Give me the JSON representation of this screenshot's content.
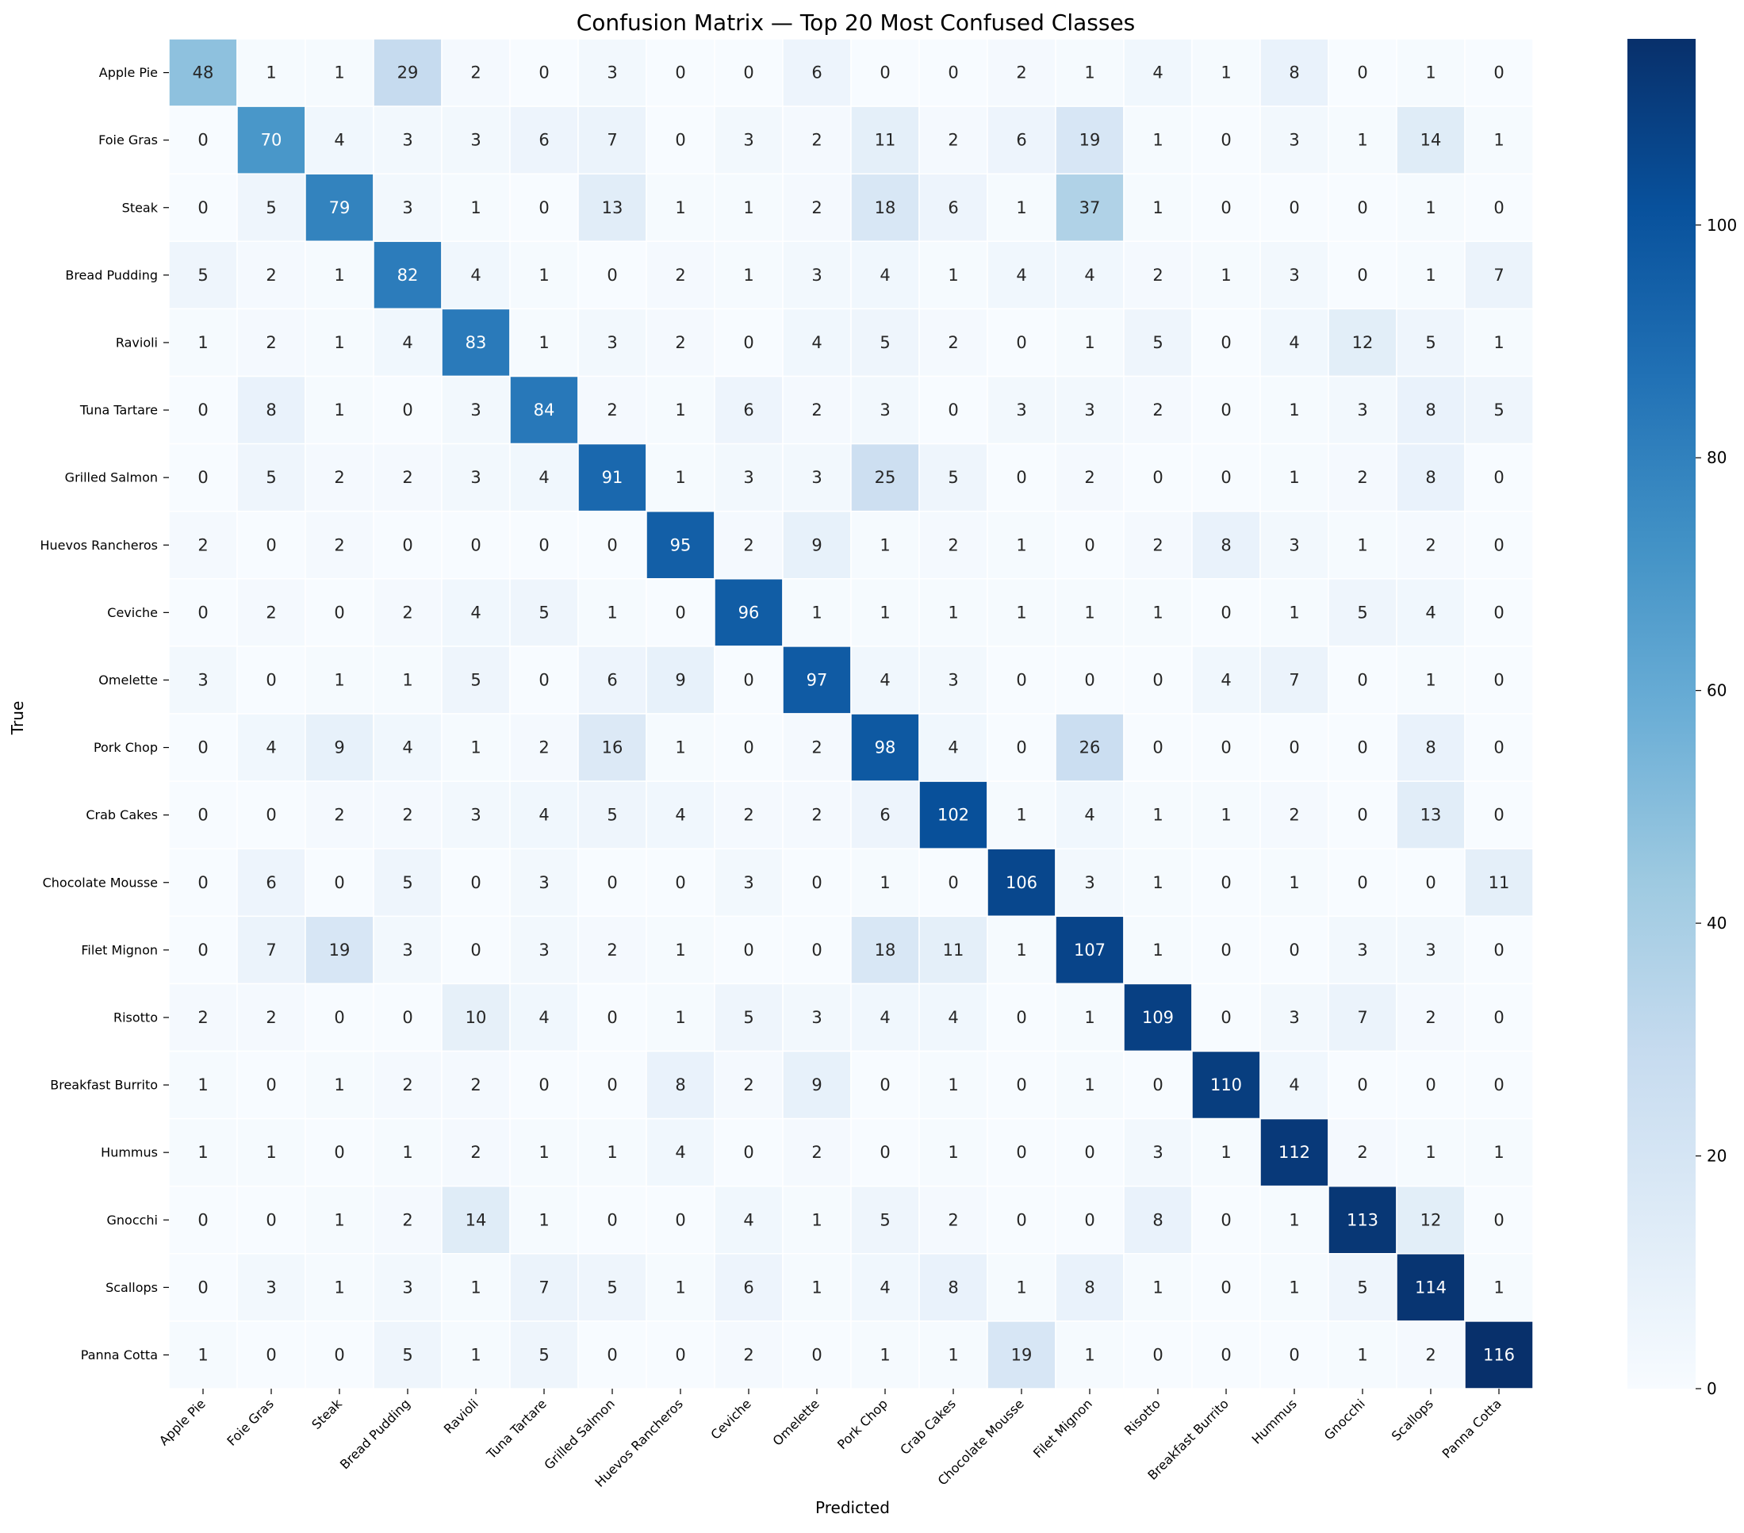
{
  "chart_data": {
    "type": "heatmap",
    "title": "Confusion Matrix — Top 20 Most Confused Classes",
    "xlabel": "Predicted",
    "ylabel": "True",
    "colormap": "Blues",
    "colors": {
      "low": "#f7fbff",
      "high": "#08306b",
      "text_light": "#ffffff",
      "text_dark": "#262626",
      "gridline": "#ffffff"
    },
    "vmin": 0,
    "vmax": 116,
    "colorbar_ticks": [
      "0",
      "20",
      "40",
      "60",
      "80",
      "100"
    ],
    "classes": [
      "Apple Pie",
      "Foie Gras",
      "Steak",
      "Bread Pudding",
      "Ravioli",
      "Tuna Tartare",
      "Grilled Salmon",
      "Huevos Rancheros",
      "Ceviche",
      "Omelette",
      "Pork Chop",
      "Crab Cakes",
      "Chocolate Mousse",
      "Filet Mignon",
      "Risotto",
      "Breakfast Burrito",
      "Hummus",
      "Gnocchi",
      "Scallops",
      "Panna Cotta"
    ],
    "matrix": [
      [
        48,
        1,
        1,
        29,
        2,
        0,
        3,
        0,
        0,
        6,
        0,
        0,
        2,
        1,
        4,
        1,
        8,
        0,
        1,
        0
      ],
      [
        0,
        70,
        4,
        3,
        3,
        6,
        7,
        0,
        3,
        2,
        11,
        2,
        6,
        19,
        1,
        0,
        3,
        1,
        14,
        1
      ],
      [
        0,
        5,
        79,
        3,
        1,
        0,
        13,
        1,
        1,
        2,
        18,
        6,
        1,
        37,
        1,
        0,
        0,
        0,
        1,
        0
      ],
      [
        5,
        2,
        1,
        82,
        4,
        1,
        0,
        2,
        1,
        3,
        4,
        1,
        4,
        4,
        2,
        1,
        3,
        0,
        1,
        7
      ],
      [
        1,
        2,
        1,
        4,
        83,
        1,
        3,
        2,
        0,
        4,
        5,
        2,
        0,
        1,
        5,
        0,
        4,
        12,
        5,
        1
      ],
      [
        0,
        8,
        1,
        0,
        3,
        84,
        2,
        1,
        6,
        2,
        3,
        0,
        3,
        3,
        2,
        0,
        1,
        3,
        8,
        5
      ],
      [
        0,
        5,
        2,
        2,
        3,
        4,
        91,
        1,
        3,
        3,
        25,
        5,
        0,
        2,
        0,
        0,
        1,
        2,
        8,
        0
      ],
      [
        2,
        0,
        2,
        0,
        0,
        0,
        0,
        95,
        2,
        9,
        1,
        2,
        1,
        0,
        2,
        8,
        3,
        1,
        2,
        0
      ],
      [
        0,
        2,
        0,
        2,
        4,
        5,
        1,
        0,
        96,
        1,
        1,
        1,
        1,
        1,
        1,
        0,
        1,
        5,
        4,
        0
      ],
      [
        3,
        0,
        1,
        1,
        5,
        0,
        6,
        9,
        0,
        97,
        4,
        3,
        0,
        0,
        0,
        4,
        7,
        0,
        1,
        0
      ],
      [
        0,
        4,
        9,
        4,
        1,
        2,
        16,
        1,
        0,
        2,
        98,
        4,
        0,
        26,
        0,
        0,
        0,
        0,
        8,
        0
      ],
      [
        0,
        0,
        2,
        2,
        3,
        4,
        5,
        4,
        2,
        2,
        6,
        102,
        1,
        4,
        1,
        1,
        2,
        0,
        13,
        0
      ],
      [
        0,
        6,
        0,
        5,
        0,
        3,
        0,
        0,
        3,
        0,
        1,
        0,
        106,
        3,
        1,
        0,
        1,
        0,
        0,
        11
      ],
      [
        0,
        7,
        19,
        3,
        0,
        3,
        2,
        1,
        0,
        0,
        18,
        11,
        1,
        107,
        1,
        0,
        0,
        3,
        3,
        0
      ],
      [
        2,
        2,
        0,
        0,
        10,
        4,
        0,
        1,
        5,
        3,
        4,
        4,
        0,
        1,
        109,
        0,
        3,
        7,
        2,
        0
      ],
      [
        1,
        0,
        1,
        2,
        2,
        0,
        0,
        8,
        2,
        9,
        0,
        1,
        0,
        1,
        0,
        110,
        4,
        0,
        0,
        0
      ],
      [
        1,
        1,
        0,
        1,
        2,
        1,
        1,
        4,
        0,
        2,
        0,
        1,
        0,
        0,
        3,
        1,
        112,
        2,
        1,
        1
      ],
      [
        0,
        0,
        1,
        2,
        14,
        1,
        0,
        0,
        4,
        1,
        5,
        2,
        0,
        0,
        8,
        0,
        1,
        113,
        12,
        0
      ],
      [
        0,
        3,
        1,
        3,
        1,
        7,
        5,
        1,
        6,
        1,
        4,
        8,
        1,
        8,
        1,
        0,
        1,
        5,
        114,
        1
      ],
      [
        1,
        0,
        0,
        5,
        1,
        5,
        0,
        0,
        2,
        0,
        1,
        1,
        19,
        1,
        0,
        0,
        0,
        1,
        2,
        116
      ]
    ]
  }
}
